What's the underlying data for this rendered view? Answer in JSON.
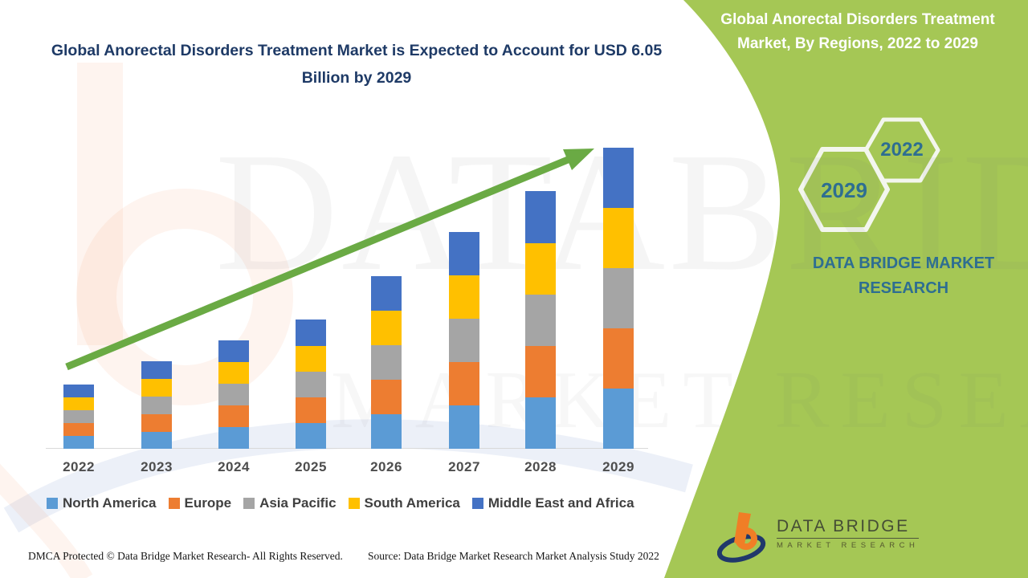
{
  "header": {
    "main_title": "Global Anorectal Disorders Treatment Market is Expected to Account for USD 6.05 Billion by 2029"
  },
  "side_panel": {
    "title": "Global Anorectal Disorders Treatment Market, By Regions, 2022 to 2029",
    "hexagons": {
      "small_year": "2022",
      "large_year": "2029"
    },
    "brand_line1": "DATA BRIDGE MARKET",
    "brand_line2": "RESEARCH",
    "background_color": "#a5c755",
    "text_color": "#2e6e91"
  },
  "chart_data": {
    "type": "bar",
    "stacked": true,
    "title": "Global Anorectal Disorders Treatment Market is Expected to Account for USD 6.05 Billion by 2029",
    "unit": "USD Billion",
    "categories": [
      "2022",
      "2023",
      "2024",
      "2025",
      "2026",
      "2027",
      "2028",
      "2029"
    ],
    "series": [
      {
        "name": "North America",
        "color": "#5b9bd5",
        "values": [
          0.26,
          0.34,
          0.43,
          0.52,
          0.69,
          0.87,
          1.04,
          1.21
        ]
      },
      {
        "name": "Europe",
        "color": "#ed7d31",
        "values": [
          0.26,
          0.35,
          0.44,
          0.52,
          0.7,
          0.87,
          1.04,
          1.21
        ]
      },
      {
        "name": "Asia Pacific",
        "color": "#a5a5a5",
        "values": [
          0.26,
          0.35,
          0.44,
          0.52,
          0.7,
          0.87,
          1.04,
          1.21
        ]
      },
      {
        "name": "South America",
        "color": "#ffc000",
        "values": [
          0.26,
          0.35,
          0.44,
          0.52,
          0.7,
          0.87,
          1.04,
          1.21
        ]
      },
      {
        "name": "Middle East and Africa",
        "color": "#4472c4",
        "values": [
          0.26,
          0.35,
          0.44,
          0.53,
          0.7,
          0.87,
          1.05,
          1.21
        ]
      }
    ],
    "totals": [
      1.3,
      1.74,
      2.19,
      2.61,
      3.49,
      4.35,
      5.21,
      6.05
    ],
    "ylim": [
      0,
      6.5
    ],
    "grid": false,
    "legend_position": "bottom",
    "annotations": [
      "upward green trend arrow from 2022 to 2029"
    ],
    "arrow_color": "#6aaa44"
  },
  "watermark": {
    "line1": "DATABRIDGE",
    "line2": "MARKET RESEARCH"
  },
  "footer": {
    "dmca": "DMCA Protected © Data Bridge Market Research- All Rights Reserved.",
    "source": "Source: Data Bridge Market Research Market Analysis Study 2022"
  },
  "logo": {
    "title": "DATA BRIDGE",
    "subtitle": "MARKET RESEARCH"
  }
}
